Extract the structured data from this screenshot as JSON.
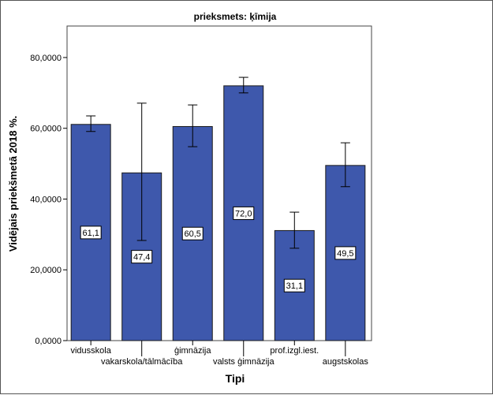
{
  "chart_data": {
    "type": "bar",
    "title": "prieksmets: ķīmija",
    "xlabel": "Tipi",
    "ylabel": "Vidējais priekšmetā 2018 %.",
    "categories": [
      "vidusskola",
      "vakarskola/tālmācība",
      "ģimnāzija",
      "valsts ģimnāzija",
      "prof.izgl.iest.",
      "augstskolas"
    ],
    "values": [
      61.1,
      47.4,
      60.5,
      72.0,
      31.1,
      49.5
    ],
    "value_labels": [
      "61,1",
      "47,4",
      "60,5",
      "72,0",
      "31,1",
      "49,5"
    ],
    "error_low": [
      59.1,
      28.3,
      54.8,
      70.0,
      26.1,
      43.5
    ],
    "error_high": [
      63.5,
      67.1,
      66.6,
      74.4,
      36.3,
      55.9
    ],
    "yticks": [
      0,
      20,
      40,
      60,
      80
    ],
    "ytick_labels": [
      "0,0000",
      "20,0000",
      "40,0000",
      "60,0000",
      "80,0000"
    ],
    "ylim": [
      0,
      88.9
    ],
    "grid": false,
    "colors": {
      "bar": "#3e58ac",
      "bar_edge": "#1a1a1a"
    }
  }
}
